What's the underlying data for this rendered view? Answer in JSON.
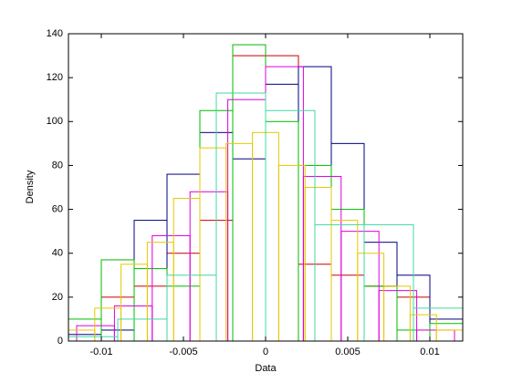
{
  "chart_data": {
    "type": "histogram",
    "xlabel": "Data",
    "ylabel": "Density",
    "xlim": [
      -0.012,
      0.012
    ],
    "ylim": [
      0,
      140
    ],
    "xticks": [
      -0.01,
      -0.005,
      0,
      0.005,
      0.01
    ],
    "yticks": [
      0,
      20,
      40,
      60,
      80,
      100,
      120,
      140
    ],
    "series": [
      {
        "color": "#cc0000",
        "bins": [
          -0.01,
          -0.008,
          -0.006,
          -0.004,
          -0.002,
          0,
          0.002,
          0.004,
          0.006,
          0.008,
          0.01
        ],
        "values": [
          20,
          25,
          40,
          55,
          130,
          130,
          35,
          30,
          25,
          20
        ]
      },
      {
        "color": "#000080",
        "bins": [
          -0.012,
          -0.01,
          -0.008,
          -0.006,
          -0.004,
          -0.002,
          0,
          0.002,
          0.004,
          0.006,
          0.008,
          0.01,
          0.012
        ],
        "values": [
          3,
          5,
          55,
          76,
          95,
          83,
          117,
          125,
          90,
          45,
          30,
          10
        ]
      },
      {
        "color": "#00bb00",
        "bins": [
          -0.012,
          -0.01,
          -0.008,
          -0.006,
          -0.004,
          -0.002,
          0,
          0.002,
          0.004,
          0.006,
          0.008,
          0.01,
          0.012
        ],
        "values": [
          10,
          37,
          33,
          25,
          105,
          135,
          100,
          80,
          60,
          25,
          5,
          8
        ]
      },
      {
        "color": "#dd00dd",
        "bins": [
          -0.0115,
          -0.0092,
          -0.0069,
          -0.0046,
          -0.0023,
          0,
          0.0023,
          0.0046,
          0.0069,
          0.0092,
          0.0115
        ],
        "values": [
          7,
          16,
          48,
          68,
          110,
          125,
          75,
          50,
          23,
          5
        ]
      },
      {
        "color": "#e6c800",
        "bins": [
          -0.012,
          -0.0104,
          -0.0088,
          -0.0072,
          -0.0056,
          -0.004,
          -0.0024,
          -0.0008,
          0.0008,
          0.0024,
          0.004,
          0.0056,
          0.0072,
          0.0088,
          0.0104,
          0.012
        ],
        "values": [
          5,
          15,
          35,
          45,
          65,
          88,
          90,
          95,
          80,
          70,
          55,
          40,
          25,
          12,
          5
        ]
      },
      {
        "color": "#40d8a0",
        "bins": [
          -0.012,
          -0.009,
          -0.006,
          -0.003,
          0,
          0.003,
          0.006,
          0.009,
          0.012
        ],
        "values": [
          2,
          10,
          30,
          113,
          105,
          53,
          53,
          15
        ]
      }
    ]
  }
}
